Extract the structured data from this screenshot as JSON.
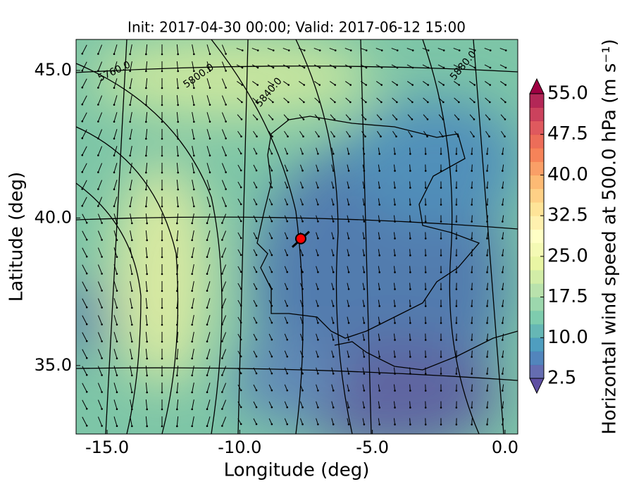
{
  "chart_data": {
    "type": "map",
    "title": "Init: 2017-04-30 00:00; Valid: 2017-06-12 15:00",
    "x_label": "Longitude (deg)",
    "y_label": "Latitude (deg)",
    "xlim": [
      -16.17,
      0.48
    ],
    "ylim": [
      32.68,
      46.05
    ],
    "xticks": [
      {
        "value": -15,
        "label": "-15.0"
      },
      {
        "value": -10,
        "label": "-10.0"
      },
      {
        "value": -5,
        "label": "-5.0"
      },
      {
        "value": 0,
        "label": "0.0"
      }
    ],
    "yticks": [
      {
        "value": 35,
        "label": "35.0"
      },
      {
        "value": 40,
        "label": "40.0"
      },
      {
        "value": 45,
        "label": "45.0"
      }
    ],
    "contour_labels": [
      "5760.0",
      "5800.0",
      "5840.0",
      "5880.0"
    ],
    "marker": {
      "lon": -7.7,
      "lat": 39.3,
      "color": "#ff0000"
    },
    "colorbar": {
      "label": "Horizontal wind speed at 500.0 hPa (m s⁻¹)",
      "lim": [
        2.5,
        55
      ],
      "levels": 21,
      "colormap": [
        "#5e4fa2",
        "#3288bd",
        "#66c2a5",
        "#abdda4",
        "#e6f598",
        "#ffffbf",
        "#fee08b",
        "#fdae61",
        "#f46d43",
        "#d53e4f",
        "#9e0142"
      ],
      "ticks": [
        {
          "value": 2.5,
          "label": "2.5"
        },
        {
          "value": 10,
          "label": "10.0"
        },
        {
          "value": 17.5,
          "label": "17.5"
        },
        {
          "value": 25,
          "label": "25.0"
        },
        {
          "value": 32.5,
          "label": "32.5"
        },
        {
          "value": 40,
          "label": "40.0"
        },
        {
          "value": 47.5,
          "label": "47.5"
        },
        {
          "value": 55,
          "label": "55.0"
        }
      ]
    }
  }
}
